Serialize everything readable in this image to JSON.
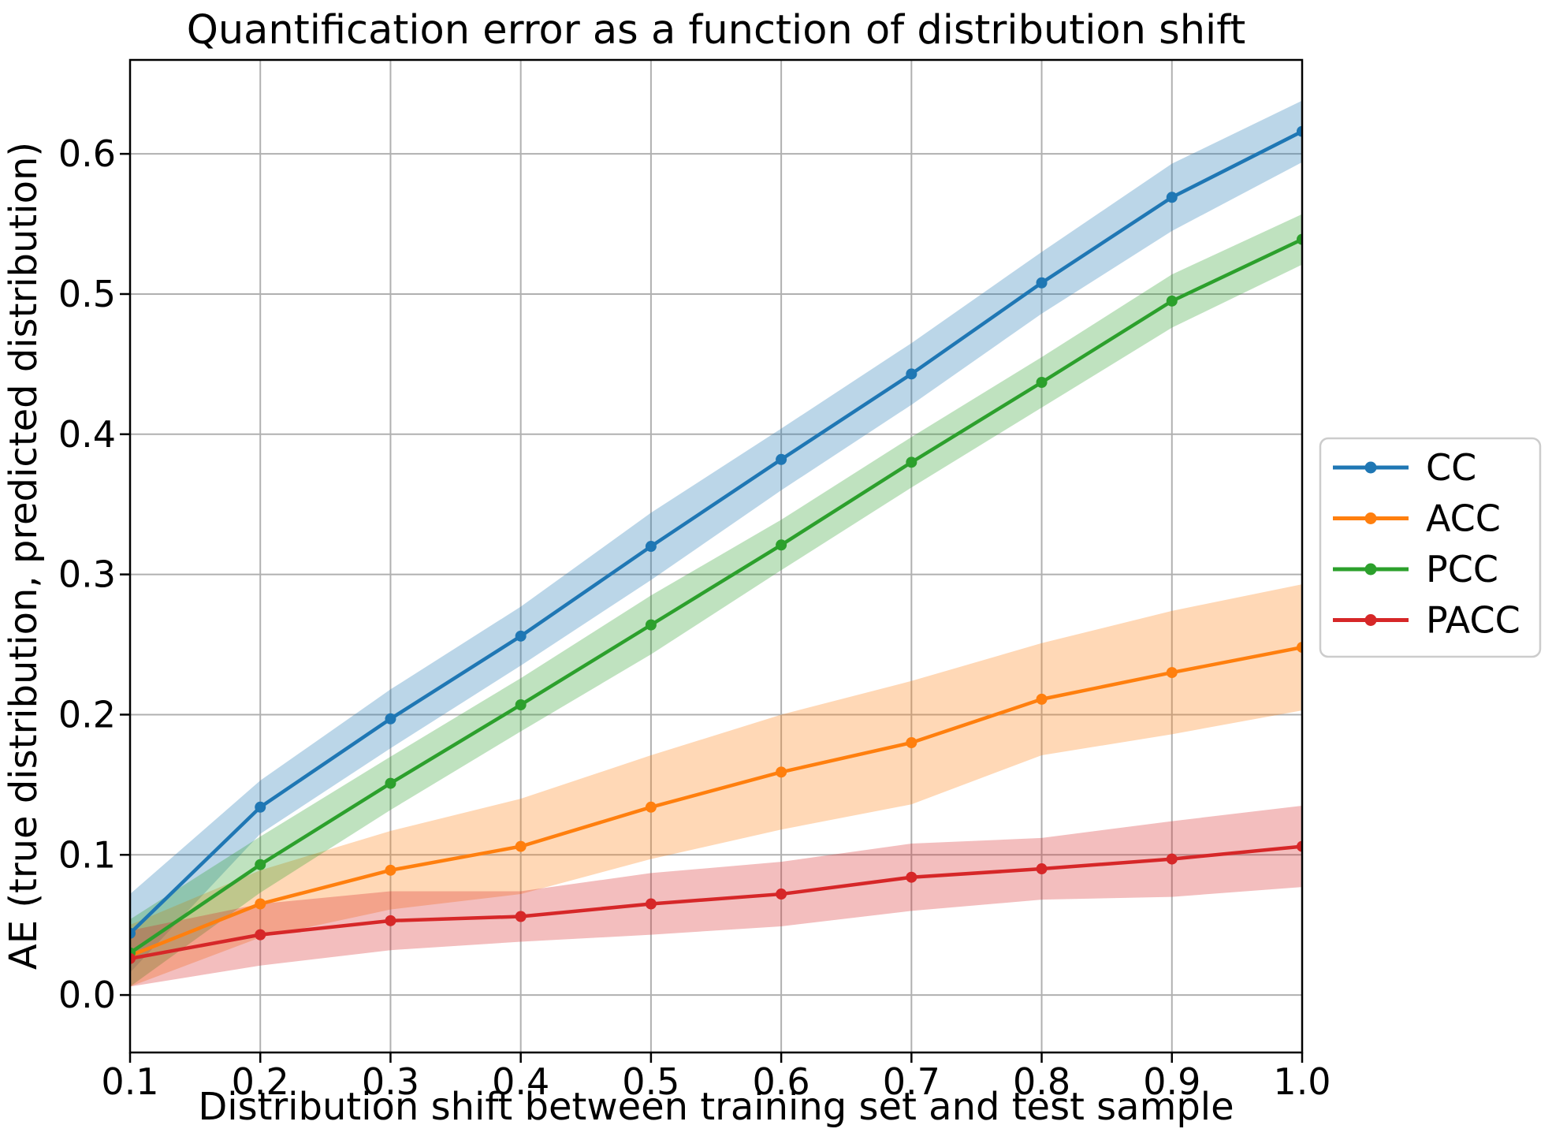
{
  "chart_data": {
    "type": "line",
    "title": "Quantification error as a function of distribution shift",
    "xlabel": "Distribution shift between training set and test sample",
    "ylabel": "AE (true distribution, predicted distribution)",
    "x": [
      0.1,
      0.2,
      0.3,
      0.4,
      0.5,
      0.6,
      0.7,
      0.8,
      0.9,
      1.0
    ],
    "series": [
      {
        "name": "CC",
        "color": "#1f77b4",
        "values": [
          0.044,
          0.134,
          0.197,
          0.256,
          0.32,
          0.382,
          0.443,
          0.508,
          0.569,
          0.616
        ],
        "band_halfwidth": [
          0.028,
          0.019,
          0.021,
          0.021,
          0.024,
          0.022,
          0.022,
          0.022,
          0.024,
          0.022
        ]
      },
      {
        "name": "ACC",
        "color": "#ff7f0e",
        "values": [
          0.028,
          0.065,
          0.089,
          0.106,
          0.134,
          0.159,
          0.18,
          0.211,
          0.23,
          0.248
        ],
        "band_halfwidth": [
          0.022,
          0.024,
          0.028,
          0.034,
          0.037,
          0.041,
          0.044,
          0.04,
          0.044,
          0.045
        ]
      },
      {
        "name": "PCC",
        "color": "#2ca02c",
        "values": [
          0.03,
          0.093,
          0.151,
          0.207,
          0.264,
          0.321,
          0.38,
          0.437,
          0.495,
          0.539
        ],
        "band_halfwidth": [
          0.024,
          0.02,
          0.019,
          0.019,
          0.021,
          0.018,
          0.018,
          0.018,
          0.019,
          0.018
        ]
      },
      {
        "name": "PACC",
        "color": "#d62728",
        "values": [
          0.026,
          0.043,
          0.053,
          0.056,
          0.065,
          0.072,
          0.084,
          0.09,
          0.097,
          0.106
        ],
        "band_halfwidth": [
          0.02,
          0.022,
          0.021,
          0.018,
          0.022,
          0.023,
          0.024,
          0.022,
          0.027,
          0.029
        ]
      }
    ],
    "x_ticks": [
      "0.1",
      "0.2",
      "0.3",
      "0.4",
      "0.5",
      "0.6",
      "0.7",
      "0.8",
      "0.9",
      "1.0"
    ],
    "y_ticks": [
      "0.0",
      "0.1",
      "0.2",
      "0.3",
      "0.4",
      "0.5",
      "0.6"
    ],
    "xlim": [
      0.1,
      1.0
    ],
    "ylim": [
      -0.041,
      0.667
    ],
    "grid": true,
    "grid_color": "#b0b0b0",
    "band_alpha": 0.3,
    "legend_position": "center-right-outside",
    "legend_labels": [
      "CC",
      "ACC",
      "PCC",
      "PACC"
    ]
  }
}
